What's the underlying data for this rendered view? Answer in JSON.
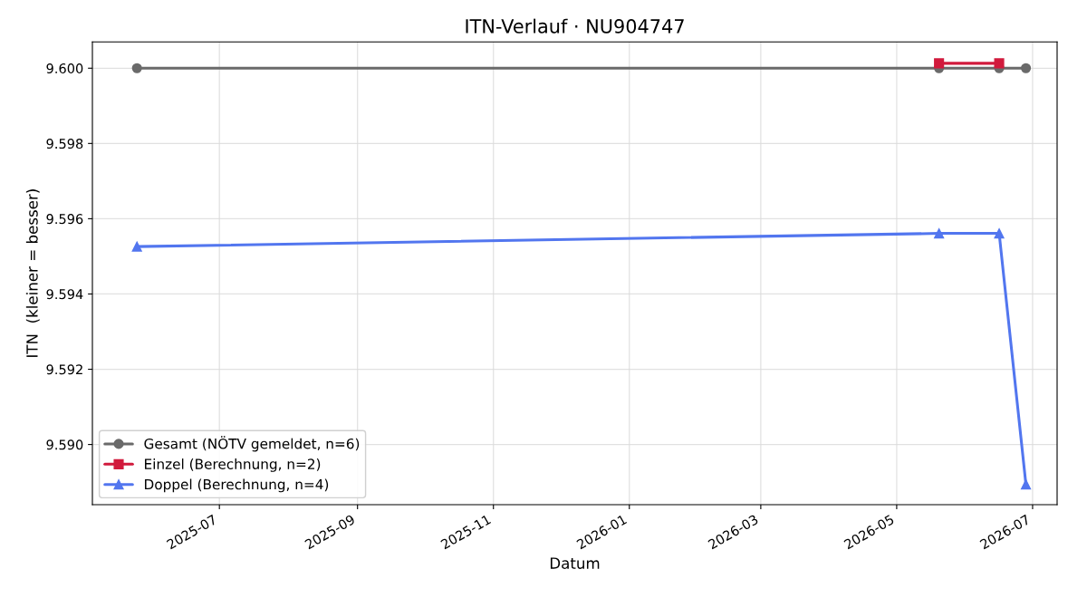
{
  "chart_data": {
    "type": "line",
    "title": "ITN-Verlauf · NU904747",
    "xlabel": "Datum",
    "ylabel": "ITN  (kleiner = besser)",
    "series": [
      {
        "name": "Gesamt (NÖTV gemeldet, n=6)",
        "color": "#6a6a6a",
        "marker": "circle",
        "x": [
          "2025-05-25",
          "2026-05-20",
          "2026-06-16",
          "2026-06-28"
        ],
        "values": [
          9.6,
          9.6,
          9.6,
          9.6
        ]
      },
      {
        "name": "Einzel (Berechnung, n=2)",
        "color": "#d11a3c",
        "marker": "square",
        "x": [
          "2026-05-20",
          "2026-06-16"
        ],
        "values": [
          9.60013,
          9.60013
        ]
      },
      {
        "name": "Doppel (Berechnung, n=4)",
        "color": "#5276ef",
        "marker": "triangle",
        "x": [
          "2025-05-25",
          "2026-05-20",
          "2026-06-16",
          "2026-06-28"
        ],
        "values": [
          9.59526,
          9.59561,
          9.59561,
          9.58894
        ]
      }
    ],
    "xlim": [
      "2025-05-05",
      "2026-07-12"
    ],
    "xticks": [
      "2025-07",
      "2025-09",
      "2025-11",
      "2026-01",
      "2026-03",
      "2026-05",
      "2026-07"
    ],
    "ylim": [
      9.5884,
      9.6007
    ],
    "yticks": [
      {
        "value": 9.59,
        "label": "9.590"
      },
      {
        "value": 9.592,
        "label": "9.592"
      },
      {
        "value": 9.594,
        "label": "9.594"
      },
      {
        "value": 9.596,
        "label": "9.596"
      },
      {
        "value": 9.598,
        "label": "9.598"
      },
      {
        "value": 9.6,
        "label": "9.600"
      }
    ],
    "grid": true,
    "legend": "bottom left",
    "line_style": "solid"
  }
}
